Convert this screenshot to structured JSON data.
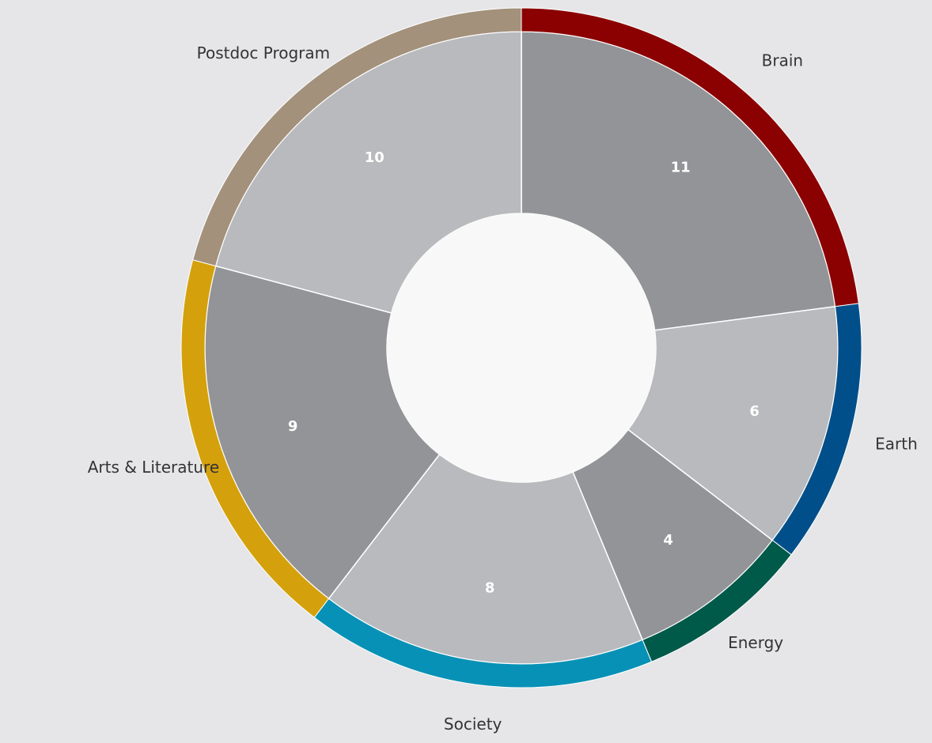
{
  "chart_data": {
    "type": "pie",
    "title": "",
    "categories": [
      "Brain",
      "Earth",
      "Energy",
      "Society",
      "Arts & Literature",
      "Postdoc Program"
    ],
    "values": [
      11,
      6,
      4,
      8,
      9,
      10
    ],
    "value_labels": [
      "11",
      "6",
      "4",
      "8",
      "9",
      "10"
    ],
    "ring_colors": [
      "#8b0000",
      "#004f8a",
      "#005a4a",
      "#0891b6",
      "#d4a10c",
      "#a3917b"
    ],
    "segment_fills": [
      "#939497",
      "#b9babe",
      "#939497",
      "#b9babe",
      "#939497",
      "#b9babe"
    ],
    "background": "#e6e6e8",
    "center_fill": "#f8f8f8",
    "legend": "none",
    "start": "top, clockwise"
  }
}
